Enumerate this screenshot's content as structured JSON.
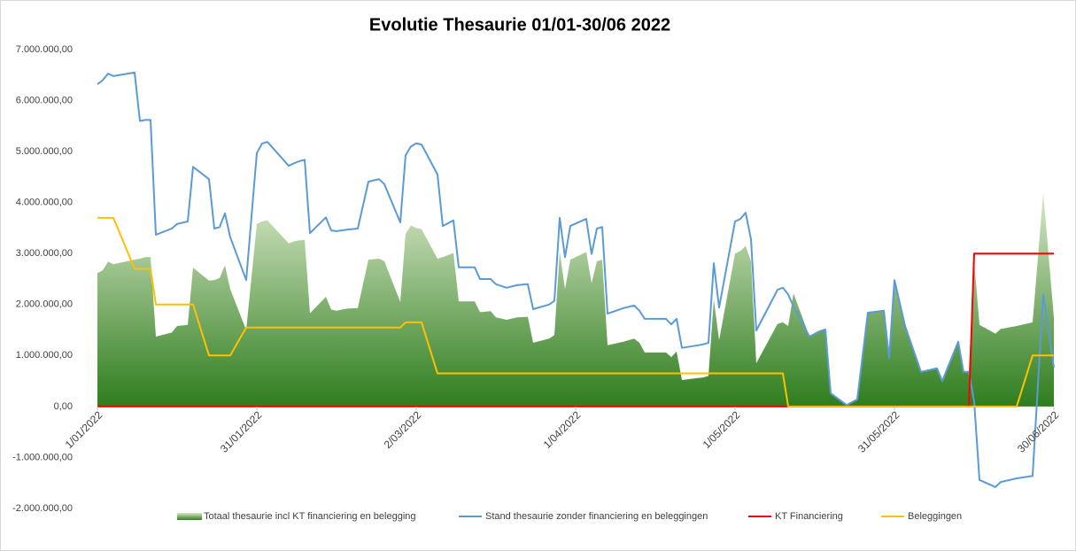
{
  "chart_data": {
    "type": "line",
    "title": "Evolutie Thesaurie 01/01-30/06 2022",
    "x": [
      "2022-01-01",
      "2022-01-02",
      "2022-01-03",
      "2022-01-04",
      "2022-01-08",
      "2022-01-09",
      "2022-01-10",
      "2022-01-11",
      "2022-01-12",
      "2022-01-15",
      "2022-01-16",
      "2022-01-18",
      "2022-01-19",
      "2022-01-22",
      "2022-01-23",
      "2022-01-24",
      "2022-01-25",
      "2022-01-26",
      "2022-01-29",
      "2022-01-31",
      "2022-02-01",
      "2022-02-02",
      "2022-02-06",
      "2022-02-07",
      "2022-02-08",
      "2022-02-09",
      "2022-02-10",
      "2022-02-13",
      "2022-02-14",
      "2022-02-15",
      "2022-02-17",
      "2022-02-19",
      "2022-02-21",
      "2022-02-23",
      "2022-02-24",
      "2022-02-27",
      "2022-02-28",
      "2022-03-01",
      "2022-03-02",
      "2022-03-03",
      "2022-03-06",
      "2022-03-07",
      "2022-03-09",
      "2022-03-10",
      "2022-03-13",
      "2022-03-14",
      "2022-03-16",
      "2022-03-17",
      "2022-03-19",
      "2022-03-21",
      "2022-03-23",
      "2022-03-24",
      "2022-03-27",
      "2022-03-28",
      "2022-03-29",
      "2022-03-30",
      "2022-03-31",
      "2022-04-03",
      "2022-04-04",
      "2022-04-05",
      "2022-04-06",
      "2022-04-07",
      "2022-04-10",
      "2022-04-12",
      "2022-04-13",
      "2022-04-14",
      "2022-04-18",
      "2022-04-19",
      "2022-04-20",
      "2022-04-21",
      "2022-04-24",
      "2022-04-25",
      "2022-04-26",
      "2022-04-27",
      "2022-04-28",
      "2022-05-01",
      "2022-05-02",
      "2022-05-03",
      "2022-05-04",
      "2022-05-05",
      "2022-05-09",
      "2022-05-10",
      "2022-05-11",
      "2022-05-12",
      "2022-05-15",
      "2022-05-17",
      "2022-05-18",
      "2022-05-19",
      "2022-05-22",
      "2022-05-24",
      "2022-05-26",
      "2022-05-29",
      "2022-05-30",
      "2022-05-31",
      "2022-06-02",
      "2022-06-05",
      "2022-06-08",
      "2022-06-09",
      "2022-06-12",
      "2022-06-13",
      "2022-06-14",
      "2022-06-15",
      "2022-06-16",
      "2022-06-19",
      "2022-06-20",
      "2022-06-23",
      "2022-06-26",
      "2022-06-28",
      "2022-06-30"
    ],
    "series": [
      {
        "name": "Totaal thesaurie incl KT financiering en belegging",
        "style": "area",
        "color": "#2e7d1e",
        "color2": "#d9e8c8",
        "values": [
          2620000,
          2670000,
          2840000,
          2790000,
          2880000,
          2900000,
          2930000,
          2930000,
          1370000,
          1450000,
          1580000,
          1600000,
          2720000,
          2470000,
          2480000,
          2520000,
          2770000,
          2300000,
          1500000,
          3580000,
          3630000,
          3650000,
          3200000,
          3240000,
          3260000,
          3270000,
          1830000,
          2150000,
          1900000,
          1880000,
          1920000,
          1930000,
          2880000,
          2900000,
          2850000,
          2050000,
          3390000,
          3550000,
          3500000,
          3480000,
          2900000,
          2930000,
          3010000,
          2060000,
          2060000,
          1850000,
          1870000,
          1750000,
          1700000,
          1750000,
          1760000,
          1250000,
          1330000,
          1400000,
          3030000,
          2300000,
          2880000,
          3030000,
          2420000,
          2850000,
          2880000,
          1200000,
          1270000,
          1330000,
          1250000,
          1060000,
          1060000,
          970000,
          1080000,
          520000,
          560000,
          570000,
          600000,
          2100000,
          1300000,
          3000000,
          3050000,
          3150000,
          2850000,
          850000,
          1620000,
          1650000,
          1580000,
          2220000,
          1370000,
          1480000,
          1510000,
          260000,
          30000,
          140000,
          1840000,
          1880000,
          950000,
          2480000,
          1580000,
          680000,
          750000,
          500000,
          1270000,
          680000,
          680000,
          2850000,
          1600000,
          1430000,
          1520000,
          1580000,
          1650000,
          4200000,
          1750000
        ]
      },
      {
        "name": "Stand thesaurie zonder financiering en beleggingen",
        "color": "#5b9bd5",
        "values": [
          6320000,
          6400000,
          6530000,
          6480000,
          6550000,
          5600000,
          5620000,
          5620000,
          3370000,
          3490000,
          3580000,
          3630000,
          4700000,
          4460000,
          3490000,
          3520000,
          3790000,
          3320000,
          2480000,
          4970000,
          5160000,
          5190000,
          4720000,
          4770000,
          4810000,
          4840000,
          3400000,
          3710000,
          3450000,
          3440000,
          3470000,
          3490000,
          4410000,
          4460000,
          4360000,
          3610000,
          4930000,
          5100000,
          5160000,
          5140000,
          4550000,
          3540000,
          3650000,
          2730000,
          2730000,
          2500000,
          2500000,
          2400000,
          2330000,
          2380000,
          2400000,
          1910000,
          2000000,
          2070000,
          3700000,
          2930000,
          3540000,
          3680000,
          2990000,
          3490000,
          3520000,
          1820000,
          1930000,
          1980000,
          1880000,
          1720000,
          1720000,
          1610000,
          1720000,
          1150000,
          1200000,
          1220000,
          1250000,
          2810000,
          1940000,
          3630000,
          3680000,
          3800000,
          3280000,
          1490000,
          2290000,
          2330000,
          2200000,
          1960000,
          1370000,
          1480000,
          1510000,
          260000,
          30000,
          140000,
          1840000,
          1880000,
          950000,
          2480000,
          1580000,
          680000,
          750000,
          500000,
          1270000,
          680000,
          680000,
          100000,
          -1440000,
          -1580000,
          -1480000,
          -1410000,
          -1360000,
          2200000,
          760000
        ]
      },
      {
        "name": "KT Financiering",
        "color": "#ff0000",
        "values": [
          0,
          0,
          0,
          0,
          0,
          0,
          0,
          0,
          0,
          0,
          0,
          0,
          0,
          0,
          0,
          0,
          0,
          0,
          0,
          0,
          0,
          0,
          0,
          0,
          0,
          0,
          0,
          0,
          0,
          0,
          0,
          0,
          0,
          0,
          0,
          0,
          0,
          0,
          0,
          0,
          0,
          0,
          0,
          0,
          0,
          0,
          0,
          0,
          0,
          0,
          0,
          0,
          0,
          0,
          0,
          0,
          0,
          0,
          0,
          0,
          0,
          0,
          0,
          0,
          0,
          0,
          0,
          0,
          0,
          0,
          0,
          0,
          0,
          0,
          0,
          0,
          0,
          0,
          0,
          0,
          0,
          0,
          0,
          0,
          0,
          0,
          0,
          0,
          0,
          0,
          0,
          0,
          0,
          0,
          0,
          0,
          0,
          0,
          0,
          0,
          0,
          3000000,
          3000000,
          3000000,
          3000000,
          3000000,
          3000000,
          3000000,
          3000000
        ]
      },
      {
        "name": "Beleggingen",
        "color": "#ffc000",
        "values": [
          3700000,
          3700000,
          3700000,
          3700000,
          2700000,
          2700000,
          2700000,
          2700000,
          2000000,
          2000000,
          2000000,
          2000000,
          2000000,
          1000000,
          1000000,
          1000000,
          1000000,
          1000000,
          1550000,
          1550000,
          1550000,
          1550000,
          1550000,
          1550000,
          1550000,
          1550000,
          1550000,
          1550000,
          1550000,
          1550000,
          1550000,
          1550000,
          1550000,
          1550000,
          1550000,
          1550000,
          1650000,
          1650000,
          1650000,
          1650000,
          650000,
          650000,
          650000,
          650000,
          650000,
          650000,
          650000,
          650000,
          650000,
          650000,
          650000,
          650000,
          650000,
          650000,
          650000,
          650000,
          650000,
          650000,
          650000,
          650000,
          650000,
          650000,
          650000,
          650000,
          650000,
          650000,
          650000,
          650000,
          650000,
          650000,
          650000,
          650000,
          650000,
          650000,
          650000,
          650000,
          650000,
          650000,
          650000,
          650000,
          650000,
          650000,
          0,
          0,
          0,
          0,
          0,
          0,
          0,
          0,
          0,
          0,
          0,
          0,
          0,
          0,
          0,
          0,
          0,
          0,
          0,
          0,
          0,
          0,
          0,
          0,
          1000000,
          1000000,
          1000000
        ]
      }
    ],
    "xlim": [
      "2022-01-01",
      "2022-06-30"
    ],
    "xticks": [
      {
        "value": "2022-01-01",
        "label": "1/01/2022"
      },
      {
        "value": "2022-01-31",
        "label": "31/01/2022"
      },
      {
        "value": "2022-03-02",
        "label": "2/03/2022"
      },
      {
        "value": "2022-04-01",
        "label": "1/04/2022"
      },
      {
        "value": "2022-05-01",
        "label": "1/05/2022"
      },
      {
        "value": "2022-05-31",
        "label": "31/05/2022"
      },
      {
        "value": "2022-06-30",
        "label": "30/06/2022"
      }
    ],
    "ylim": [
      -2000000,
      7000000
    ],
    "yticks": [
      {
        "value": -2000000,
        "label": "-2.000.000,00"
      },
      {
        "value": -1000000,
        "label": "-1.000.000,00"
      },
      {
        "value": 0,
        "label": "0,00"
      },
      {
        "value": 1000000,
        "label": "1.000.000,00"
      },
      {
        "value": 2000000,
        "label": "2.000.000,00"
      },
      {
        "value": 3000000,
        "label": "3.000.000,00"
      },
      {
        "value": 4000000,
        "label": "4.000.000,00"
      },
      {
        "value": 5000000,
        "label": "5.000.000,00"
      },
      {
        "value": 6000000,
        "label": "6.000.000,00"
      },
      {
        "value": 7000000,
        "label": "7.000.000,00"
      }
    ],
    "grid": false,
    "legend": "bottom"
  }
}
